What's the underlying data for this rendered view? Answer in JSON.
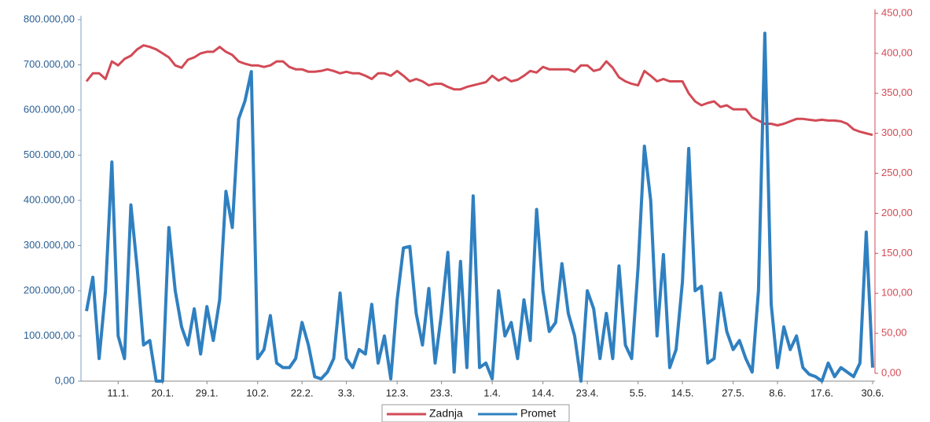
{
  "chart_data": {
    "type": "line",
    "categories": [
      null,
      null,
      null,
      null,
      null,
      "11.1.",
      null,
      null,
      null,
      null,
      null,
      null,
      "20.1.",
      null,
      null,
      null,
      null,
      null,
      null,
      "29.1.",
      null,
      null,
      null,
      null,
      null,
      null,
      null,
      "10.2.",
      null,
      null,
      null,
      null,
      null,
      null,
      "22.2.",
      null,
      null,
      null,
      null,
      null,
      null,
      "3.3.",
      null,
      null,
      null,
      null,
      null,
      null,
      null,
      "12.3.",
      null,
      null,
      null,
      null,
      null,
      null,
      "23.3.",
      null,
      null,
      null,
      null,
      null,
      null,
      null,
      "1.4.",
      null,
      null,
      null,
      null,
      null,
      null,
      null,
      "14.4.",
      null,
      null,
      null,
      null,
      null,
      null,
      "23.4.",
      null,
      null,
      null,
      null,
      null,
      null,
      null,
      "5.5.",
      null,
      null,
      null,
      null,
      null,
      null,
      "14.5.",
      null,
      null,
      null,
      null,
      null,
      null,
      null,
      "27.5.",
      null,
      null,
      null,
      null,
      null,
      null,
      "8.6.",
      null,
      null,
      null,
      null,
      null,
      null,
      "17.6.",
      null,
      null,
      null,
      null,
      null,
      null,
      null,
      "30.6."
    ],
    "series": [
      {
        "name": "Zadnja",
        "color": "#d24a55",
        "axis": "y2",
        "values": [
          365,
          375,
          375,
          368,
          390,
          385,
          393,
          397,
          405,
          410,
          408,
          405,
          400,
          395,
          385,
          382,
          392,
          395,
          400,
          402,
          402,
          408,
          402,
          398,
          390,
          387,
          385,
          385,
          383,
          385,
          390,
          390,
          383,
          380,
          380,
          377,
          377,
          378,
          380,
          378,
          375,
          377,
          375,
          375,
          372,
          368,
          375,
          375,
          372,
          378,
          372,
          365,
          368,
          365,
          360,
          362,
          362,
          358,
          355,
          355,
          358,
          360,
          362,
          364,
          372,
          366,
          370,
          365,
          367,
          372,
          378,
          376,
          383,
          380,
          380,
          380,
          380,
          377,
          385,
          385,
          378,
          380,
          390,
          382,
          370,
          365,
          362,
          360,
          378,
          372,
          365,
          368,
          365,
          365,
          365,
          350,
          340,
          335,
          338,
          340,
          333,
          335,
          330,
          330,
          330,
          320,
          316,
          312,
          312,
          310,
          312,
          315,
          318,
          318,
          317,
          316,
          317,
          316,
          316,
          315,
          312,
          305,
          302,
          300,
          298
        ]
      },
      {
        "name": "Promet",
        "color": "#2f80c0",
        "values": [
          155000,
          230000,
          50000,
          200000,
          485000,
          100000,
          50000,
          390000,
          250000,
          80000,
          90000,
          0,
          0,
          340000,
          200000,
          120000,
          80000,
          160000,
          60000,
          165000,
          90000,
          180000,
          420000,
          340000,
          580000,
          620000,
          685000,
          50000,
          70000,
          145000,
          40000,
          30000,
          30000,
          50000,
          130000,
          80000,
          10000,
          5000,
          20000,
          50000,
          195000,
          50000,
          30000,
          70000,
          60000,
          170000,
          40000,
          100000,
          5000,
          180000,
          295000,
          298000,
          150000,
          80000,
          205000,
          40000,
          150000,
          285000,
          20000,
          265000,
          30000,
          410000,
          30000,
          40000,
          5000,
          200000,
          100000,
          130000,
          50000,
          180000,
          90000,
          380000,
          200000,
          110000,
          130000,
          260000,
          150000,
          100000,
          0,
          200000,
          160000,
          50000,
          150000,
          50000,
          255000,
          80000,
          50000,
          250000,
          520000,
          400000,
          100000,
          280000,
          30000,
          70000,
          220000,
          515000,
          200000,
          210000,
          40000,
          50000,
          195000,
          110000,
          70000,
          90000,
          50000,
          20000,
          200000,
          770000,
          170000,
          30000,
          120000,
          70000,
          100000,
          30000,
          15000,
          10000,
          0,
          40000,
          10000,
          30000,
          20000,
          10000,
          40000,
          330000,
          30000
        ]
      }
    ],
    "ylim": [
      0,
      800000
    ],
    "yticks": [
      {
        "value": 0,
        "label": "0,00"
      },
      {
        "value": 100000,
        "label": "100.000,00"
      },
      {
        "value": 200000,
        "label": "200.000,00"
      },
      {
        "value": 300000,
        "label": "300.000,00"
      },
      {
        "value": 400000,
        "label": "400.000,00"
      },
      {
        "value": 500000,
        "label": "500.000,00"
      },
      {
        "value": 600000,
        "label": "600.000,00"
      },
      {
        "value": 700000,
        "label": "700.000,00"
      },
      {
        "value": 800000,
        "label": "800.000,00"
      }
    ],
    "y2lim": [
      0,
      450
    ],
    "y2ticks": [
      {
        "value": 0,
        "label": "0,00"
      },
      {
        "value": 50,
        "label": "50,00"
      },
      {
        "value": 100,
        "label": "100,00"
      },
      {
        "value": 150,
        "label": "150,00"
      },
      {
        "value": 200,
        "label": "200,00"
      },
      {
        "value": 250,
        "label": "250,00"
      },
      {
        "value": 300,
        "label": "300,00"
      },
      {
        "value": 350,
        "label": "350,00"
      },
      {
        "value": 400,
        "label": "400,00"
      },
      {
        "value": 450,
        "label": "450,00"
      }
    ],
    "legend": "bottom"
  }
}
